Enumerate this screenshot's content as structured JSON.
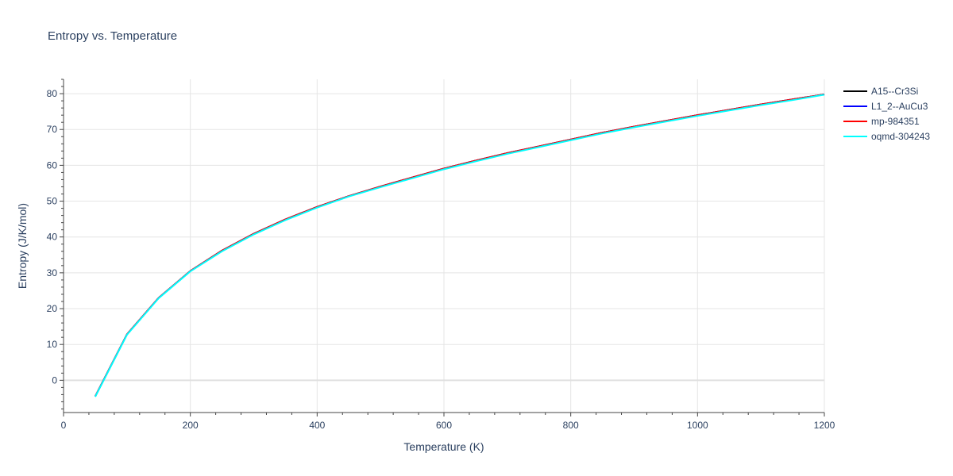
{
  "chart_data": {
    "type": "line",
    "title": "Entropy vs. Temperature",
    "xlabel": "Temperature (K)",
    "ylabel": "Entropy (J/K/mol)",
    "xlim": [
      0,
      1200
    ],
    "ylim": [
      -9,
      84
    ],
    "xticks": [
      0,
      200,
      400,
      600,
      800,
      1000,
      1200
    ],
    "yticks": [
      0,
      10,
      20,
      30,
      40,
      50,
      60,
      70,
      80
    ],
    "grid": true,
    "legend_position": "top-right",
    "x": [
      50,
      100,
      150,
      200,
      250,
      300,
      350,
      400,
      450,
      500,
      550,
      600,
      650,
      700,
      750,
      800,
      850,
      900,
      950,
      1000,
      1050,
      1100,
      1150,
      1200
    ],
    "series": [
      {
        "name": "A15--Cr3Si",
        "color": "#000000",
        "values": [
          -4.5,
          12.8,
          23.0,
          30.5,
          36.2,
          40.9,
          44.9,
          48.4,
          51.4,
          54.1,
          56.6,
          59.1,
          61.3,
          63.4,
          65.3,
          67.2,
          69.1,
          70.8,
          72.4,
          74.0,
          75.5,
          77.0,
          78.4,
          79.8
        ]
      },
      {
        "name": "L1_2--AuCu3",
        "color": "#0000ff",
        "values": [
          -4.5,
          12.8,
          23.0,
          30.5,
          36.2,
          40.9,
          44.9,
          48.4,
          51.4,
          54.1,
          56.6,
          59.1,
          61.3,
          63.4,
          65.3,
          67.2,
          69.1,
          70.8,
          72.4,
          74.0,
          75.5,
          77.0,
          78.4,
          79.8
        ]
      },
      {
        "name": "mp-984351",
        "color": "#ff0000",
        "values": [
          -4.5,
          12.8,
          23.0,
          30.5,
          36.2,
          40.9,
          44.9,
          48.4,
          51.4,
          54.1,
          56.6,
          59.1,
          61.3,
          63.4,
          65.3,
          67.2,
          69.1,
          70.8,
          72.4,
          74.0,
          75.5,
          77.0,
          78.4,
          79.8
        ]
      },
      {
        "name": "oqmd-304243",
        "color": "#00ffff",
        "values": [
          -4.6,
          12.7,
          22.9,
          30.4,
          36.0,
          40.7,
          44.7,
          48.2,
          51.3,
          53.9,
          56.4,
          58.9,
          61.1,
          63.2,
          65.1,
          67.0,
          68.9,
          70.6,
          72.2,
          73.8,
          75.3,
          76.8,
          78.2,
          79.7
        ]
      }
    ]
  }
}
